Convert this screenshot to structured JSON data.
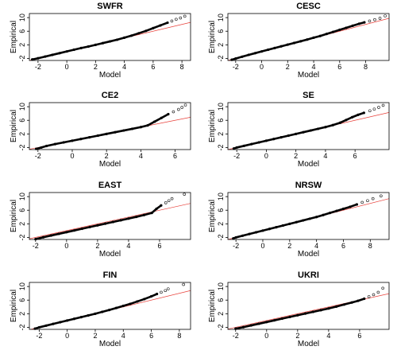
{
  "chart_data": [
    {
      "type": "scatter",
      "title": "SWFR",
      "xlabel": "Model",
      "ylabel": "Empirical",
      "xlim": [
        -2.6,
        8.6
      ],
      "ylim": [
        -2.6,
        11.2
      ],
      "xticks": [
        -2,
        0,
        2,
        4,
        6,
        8
      ],
      "yticks": [
        -2,
        2,
        6,
        10
      ],
      "reference_line": {
        "slope": 1,
        "intercept": 0
      },
      "x": [
        -2.4,
        -2.0,
        -1.5,
        -1.0,
        -0.5,
        0.0,
        0.5,
        1.0,
        1.5,
        2.0,
        2.5,
        3.0,
        3.5,
        4.0,
        4.5,
        5.0,
        5.5,
        6.0,
        6.5,
        7.0,
        7.3,
        7.6,
        7.9,
        8.2
      ],
      "y": [
        -2.3,
        -1.95,
        -1.45,
        -0.95,
        -0.45,
        0.05,
        0.55,
        1.05,
        1.5,
        2.0,
        2.5,
        3.0,
        3.5,
        4.1,
        4.7,
        5.4,
        6.1,
        6.9,
        7.7,
        8.5,
        9.0,
        9.5,
        9.9,
        10.4
      ]
    },
    {
      "type": "scatter",
      "title": "CESC",
      "xlabel": "Model",
      "ylabel": "Empirical",
      "xlim": [
        -2.6,
        9.8
      ],
      "ylim": [
        -2.6,
        11.2
      ],
      "xticks": [
        -2,
        0,
        2,
        4,
        6,
        8
      ],
      "yticks": [
        -2,
        2,
        6,
        10
      ],
      "reference_line": {
        "slope": 1,
        "intercept": 0
      },
      "x": [
        -2.3,
        -2.0,
        -1.5,
        -1.0,
        -0.5,
        0.0,
        0.5,
        1.0,
        1.5,
        2.0,
        2.5,
        3.0,
        3.5,
        4.0,
        4.5,
        5.0,
        5.5,
        6.0,
        6.5,
        7.0,
        7.5,
        7.9,
        8.3,
        8.7,
        9.1,
        9.5
      ],
      "y": [
        -2.4,
        -2.05,
        -1.5,
        -0.95,
        -0.45,
        0.05,
        0.55,
        1.05,
        1.55,
        2.05,
        2.55,
        3.05,
        3.55,
        4.1,
        4.6,
        5.2,
        5.8,
        6.4,
        7.0,
        7.6,
        8.2,
        8.6,
        9.0,
        9.4,
        9.8,
        10.5
      ]
    },
    {
      "type": "scatter",
      "title": "CE2",
      "xlabel": "Model",
      "ylabel": "Empirical",
      "xlim": [
        -2.5,
        6.9
      ],
      "ylim": [
        -2.6,
        11.2
      ],
      "xticks": [
        -2,
        0,
        2,
        4,
        6
      ],
      "yticks": [
        -2,
        2,
        6,
        10
      ],
      "reference_line": {
        "slope": 1,
        "intercept": 0
      },
      "x": [
        -2.1,
        -1.8,
        -1.5,
        -1.0,
        -0.5,
        0.0,
        0.5,
        1.0,
        1.5,
        2.0,
        2.5,
        3.0,
        3.5,
        4.0,
        4.4,
        4.8,
        5.2,
        5.6,
        5.9,
        6.2,
        6.4,
        6.6
      ],
      "y": [
        -2.4,
        -2.0,
        -1.55,
        -1.0,
        -0.5,
        0.0,
        0.5,
        1.0,
        1.5,
        2.0,
        2.5,
        3.0,
        3.5,
        4.0,
        4.5,
        5.6,
        6.7,
        7.8,
        8.5,
        9.2,
        9.8,
        10.5
      ]
    },
    {
      "type": "scatter",
      "title": "SE",
      "xlabel": "Model",
      "ylabel": "Empirical",
      "xlim": [
        -2.6,
        8.3
      ],
      "ylim": [
        -2.6,
        11.2
      ],
      "xticks": [
        -2,
        0,
        2,
        4,
        6
      ],
      "yticks": [
        -2,
        2,
        6,
        10
      ],
      "reference_line": {
        "slope": 1,
        "intercept": 0
      },
      "x": [
        -2.2,
        -2.0,
        -1.5,
        -1.0,
        -0.5,
        0.0,
        0.5,
        1.0,
        1.5,
        2.0,
        2.5,
        3.0,
        3.5,
        4.0,
        4.5,
        5.0,
        5.4,
        5.8,
        6.2,
        6.6,
        7.0,
        7.3,
        7.6,
        7.9
      ],
      "y": [
        -2.3,
        -2.0,
        -1.5,
        -1.0,
        -0.5,
        0.0,
        0.5,
        1.0,
        1.5,
        2.0,
        2.5,
        3.0,
        3.5,
        4.0,
        4.6,
        5.3,
        6.1,
        6.9,
        7.6,
        8.2,
        8.8,
        9.3,
        9.8,
        10.4
      ]
    },
    {
      "type": "scatter",
      "title": "EAST",
      "xlabel": "Model",
      "ylabel": "Empirical",
      "xlim": [
        -2.4,
        8.0
      ],
      "ylim": [
        -2.6,
        11.2
      ],
      "xticks": [
        -2,
        0,
        2,
        4,
        6
      ],
      "yticks": [
        -2,
        2,
        6,
        10
      ],
      "reference_line": {
        "slope": 1,
        "intercept": 0
      },
      "x": [
        -2.0,
        -1.5,
        -1.0,
        -0.5,
        0.0,
        0.5,
        1.0,
        1.5,
        2.0,
        2.5,
        3.0,
        3.5,
        4.0,
        4.5,
        5.0,
        5.5,
        5.8,
        6.1,
        6.4,
        6.6,
        6.8,
        7.6
      ],
      "y": [
        -2.5,
        -1.95,
        -1.45,
        -0.95,
        -0.45,
        0.05,
        0.55,
        1.05,
        1.55,
        2.05,
        2.55,
        3.05,
        3.55,
        4.05,
        4.6,
        5.2,
        6.4,
        7.4,
        8.2,
        8.8,
        9.4,
        10.7
      ]
    },
    {
      "type": "scatter",
      "title": "NRSW",
      "xlabel": "Model",
      "ylabel": "Empirical",
      "xlim": [
        -2.6,
        9.4
      ],
      "ylim": [
        -2.6,
        11.2
      ],
      "xticks": [
        -2,
        0,
        2,
        4,
        6,
        8
      ],
      "yticks": [
        -2,
        2,
        6,
        10
      ],
      "reference_line": {
        "slope": 1,
        "intercept": 0
      },
      "x": [
        -2.2,
        -2.0,
        -1.5,
        -1.0,
        -0.5,
        0.0,
        0.5,
        1.0,
        1.5,
        2.0,
        2.5,
        3.0,
        3.5,
        4.0,
        4.5,
        5.0,
        5.5,
        6.0,
        6.5,
        7.0,
        7.4,
        7.8,
        8.2,
        8.8
      ],
      "y": [
        -2.3,
        -2.0,
        -1.5,
        -1.0,
        -0.5,
        0.0,
        0.5,
        1.0,
        1.5,
        2.0,
        2.5,
        3.0,
        3.5,
        4.0,
        4.6,
        5.2,
        5.8,
        6.4,
        7.0,
        7.7,
        8.3,
        8.8,
        9.4,
        10.2
      ]
    },
    {
      "type": "scatter",
      "title": "FIN",
      "xlabel": "Model",
      "ylabel": "Empirical",
      "xlim": [
        -2.7,
        8.8
      ],
      "ylim": [
        -2.6,
        11.2
      ],
      "xticks": [
        -2,
        0,
        2,
        4,
        6,
        8
      ],
      "yticks": [
        -2,
        2,
        6,
        10
      ],
      "reference_line": {
        "slope": 1,
        "intercept": 0
      },
      "x": [
        -2.3,
        -2.0,
        -1.5,
        -1.0,
        -0.5,
        0.0,
        0.5,
        1.0,
        1.5,
        2.0,
        2.5,
        3.0,
        3.5,
        4.0,
        4.5,
        5.0,
        5.5,
        6.0,
        6.4,
        6.7,
        7.0,
        7.2,
        8.3
      ],
      "y": [
        -2.4,
        -2.0,
        -1.5,
        -1.0,
        -0.5,
        0.0,
        0.5,
        1.0,
        1.5,
        2.0,
        2.55,
        3.1,
        3.7,
        4.3,
        4.9,
        5.6,
        6.3,
        7.1,
        7.8,
        8.3,
        8.8,
        9.3,
        10.6
      ]
    },
    {
      "type": "scatter",
      "title": "UKRI",
      "xlabel": "Model",
      "ylabel": "Empirical",
      "xlim": [
        -2.5,
        7.9
      ],
      "ylim": [
        -2.6,
        11.2
      ],
      "xticks": [
        -2,
        0,
        2,
        4,
        6
      ],
      "yticks": [
        -2,
        2,
        6,
        10
      ],
      "reference_line": {
        "slope": 1,
        "intercept": 0
      },
      "x": [
        -2.0,
        -1.5,
        -1.0,
        -0.5,
        0.0,
        0.5,
        1.0,
        1.5,
        2.0,
        2.5,
        3.0,
        3.5,
        4.0,
        4.5,
        5.0,
        5.5,
        5.9,
        6.3,
        6.6,
        6.9,
        7.2,
        7.5
      ],
      "y": [
        -2.4,
        -1.95,
        -1.45,
        -0.95,
        -0.45,
        0.05,
        0.55,
        1.05,
        1.55,
        2.05,
        2.55,
        3.05,
        3.55,
        4.1,
        4.7,
        5.3,
        5.8,
        6.4,
        7.0,
        7.6,
        8.3,
        9.5
      ]
    }
  ]
}
